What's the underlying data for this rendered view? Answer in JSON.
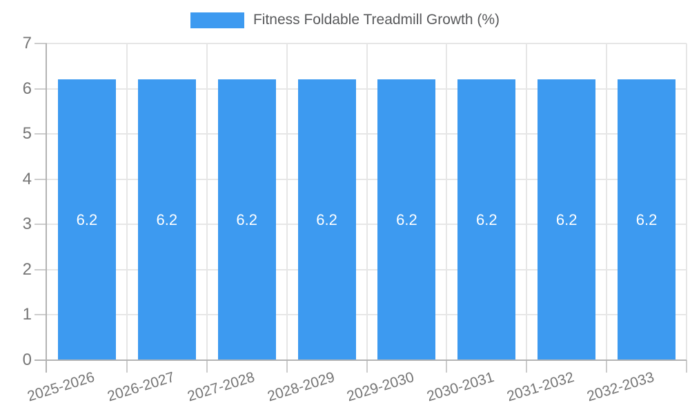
{
  "chart_data": {
    "type": "bar",
    "title": "Fitness Foldable Treadmill Growth (%)",
    "categories": [
      "2025-2026",
      "2026-2027",
      "2027-2028",
      "2028-2029",
      "2029-2030",
      "2030-2031",
      "2031-2032",
      "2032-2033"
    ],
    "values": [
      6.2,
      6.2,
      6.2,
      6.2,
      6.2,
      6.2,
      6.2,
      6.2
    ],
    "value_labels": [
      "6.2",
      "6.2",
      "6.2",
      "6.2",
      "6.2",
      "6.2",
      "6.2",
      "6.2"
    ],
    "xlabel": "",
    "ylabel": "",
    "ylim": [
      0,
      7
    ],
    "yticks": [
      0,
      1,
      2,
      3,
      4,
      5,
      6,
      7
    ],
    "grid": true,
    "legend_position": "top"
  },
  "colors": {
    "bar": "#3D9AF0",
    "gridline": "#E6E6E6",
    "axis": "#B3B3B3",
    "tick": "#CCCCCC",
    "axis_text": "#757575",
    "legend_text": "#58595B",
    "value_label": "#FFFFFF",
    "background": "#FFFFFF"
  }
}
